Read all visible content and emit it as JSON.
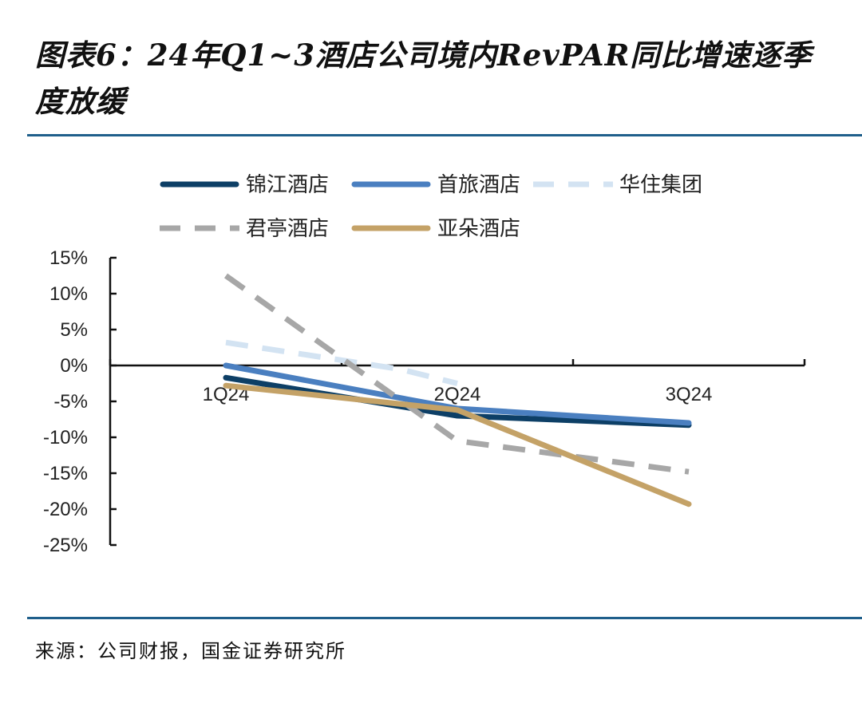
{
  "title": "图表6：24年Q1~3酒店公司境内RevPAR同比增速逐季度放缓",
  "source": "来源：公司财报，国金证券研究所",
  "chart_data": {
    "type": "line",
    "categories": [
      "1Q24",
      "2Q24",
      "3Q24"
    ],
    "ylim": [
      -25,
      15
    ],
    "yticks": [
      15,
      10,
      5,
      0,
      -5,
      -10,
      -15,
      -20,
      -25
    ],
    "ytick_labels": [
      "15%",
      "10%",
      "5%",
      "0%",
      "-5%",
      "-10%",
      "-15%",
      "-20%",
      "-25%"
    ],
    "xlabel": "",
    "ylabel": "",
    "legend_position": "top",
    "series": [
      {
        "name": "锦江酒店",
        "values": [
          -1.7,
          -7.0,
          -8.3
        ],
        "color": "#0d3f66",
        "dash": "solid"
      },
      {
        "name": "首旅酒店",
        "values": [
          0.0,
          -6.0,
          -8.0
        ],
        "color": "#4a7fc0",
        "dash": "solid"
      },
      {
        "name": "华住集团",
        "values": [
          3.2,
          -0.5,
          -2.5
        ],
        "color": "#d3e3f2",
        "dash": "dashed",
        "x": [
          0,
          0.75,
          1.0
        ]
      },
      {
        "name": "君亭酒店",
        "values": [
          12.5,
          -10.5,
          -14.8
        ],
        "color": "#a7a7a7",
        "dash": "dashed"
      },
      {
        "name": "亚朵酒店",
        "values": [
          -2.8,
          -6.2,
          -19.3
        ],
        "color": "#c4a267",
        "dash": "solid"
      }
    ]
  }
}
